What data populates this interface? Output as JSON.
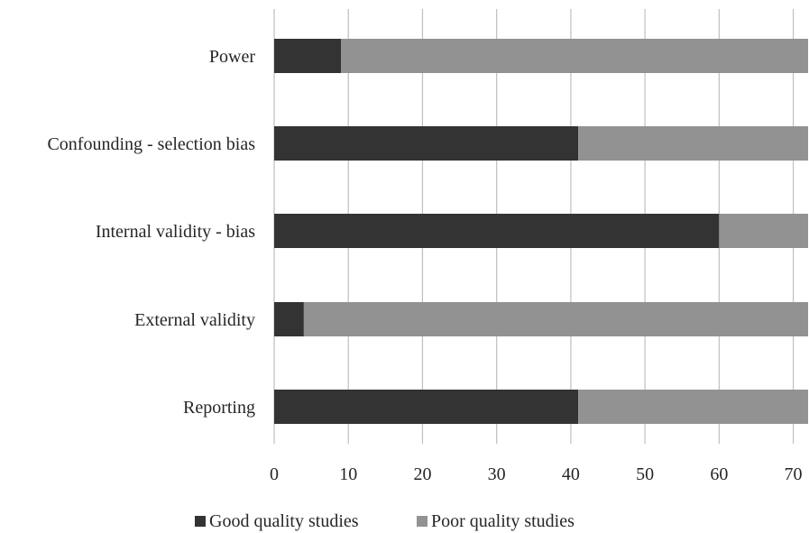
{
  "chart_data": {
    "type": "bar",
    "orientation": "horizontal",
    "stacked": true,
    "categories": [
      "Power",
      "Confounding - selection bias",
      "Internal validity - bias",
      "External validity",
      "Reporting"
    ],
    "series": [
      {
        "name": "Good quality studies",
        "color": "#333333",
        "values": [
          9,
          41,
          60,
          4,
          41
        ]
      },
      {
        "name": "Poor quality studies",
        "color": "#929292",
        "values": [
          63,
          31,
          12,
          68,
          31
        ]
      }
    ],
    "x_ticks": [
      "0",
      "10",
      "20",
      "30",
      "40",
      "50",
      "60",
      "70"
    ],
    "xlim": [
      0,
      72
    ],
    "grid": "vertical",
    "legend_position": "bottom",
    "title": "",
    "xlabel": "",
    "ylabel": ""
  }
}
